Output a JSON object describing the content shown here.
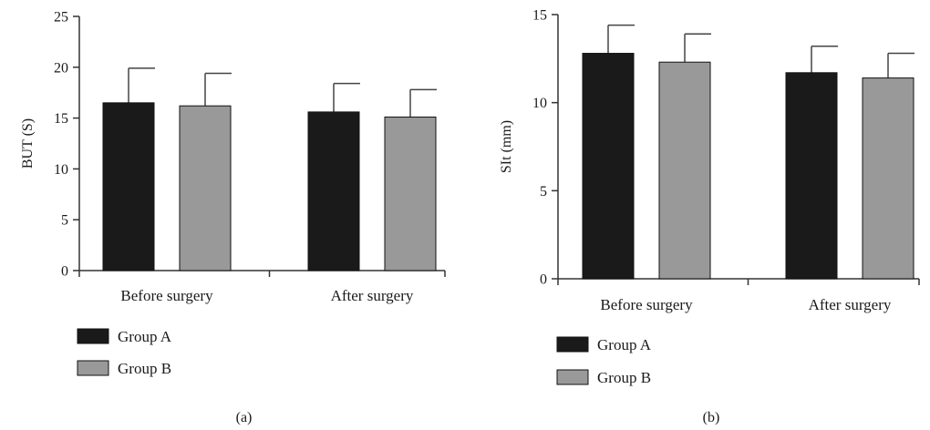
{
  "colors": {
    "group_a": "#1a1a1a",
    "group_b": "#999999",
    "axis": "#333333",
    "error_bar": "#444444"
  },
  "chart_data": [
    {
      "type": "bar",
      "panel_label": "(a)",
      "ylabel": "BUT (S)",
      "xlabel": "",
      "ylim": [
        0,
        25
      ],
      "yticks": [
        0,
        5,
        10,
        15,
        20,
        25
      ],
      "categories": [
        "Before surgery",
        "After surgery"
      ],
      "series": [
        {
          "name": "Group A",
          "values": [
            16.5,
            15.6
          ],
          "errors": [
            3.4,
            2.8
          ]
        },
        {
          "name": "Group B",
          "values": [
            16.2,
            15.1
          ],
          "errors": [
            3.2,
            2.7
          ]
        }
      ],
      "legend": "bottom-left",
      "grid": false
    },
    {
      "type": "bar",
      "panel_label": "(b)",
      "ylabel": "SIt (mm)",
      "xlabel": "",
      "ylim": [
        0,
        15
      ],
      "yticks": [
        0,
        5,
        10,
        15
      ],
      "categories": [
        "Before surgery",
        "After surgery"
      ],
      "series": [
        {
          "name": "Group A",
          "values": [
            12.8,
            11.7
          ],
          "errors": [
            1.6,
            1.5
          ]
        },
        {
          "name": "Group B",
          "values": [
            12.3,
            11.4
          ],
          "errors": [
            1.6,
            1.4
          ]
        }
      ],
      "legend": "bottom-left",
      "grid": false
    }
  ]
}
